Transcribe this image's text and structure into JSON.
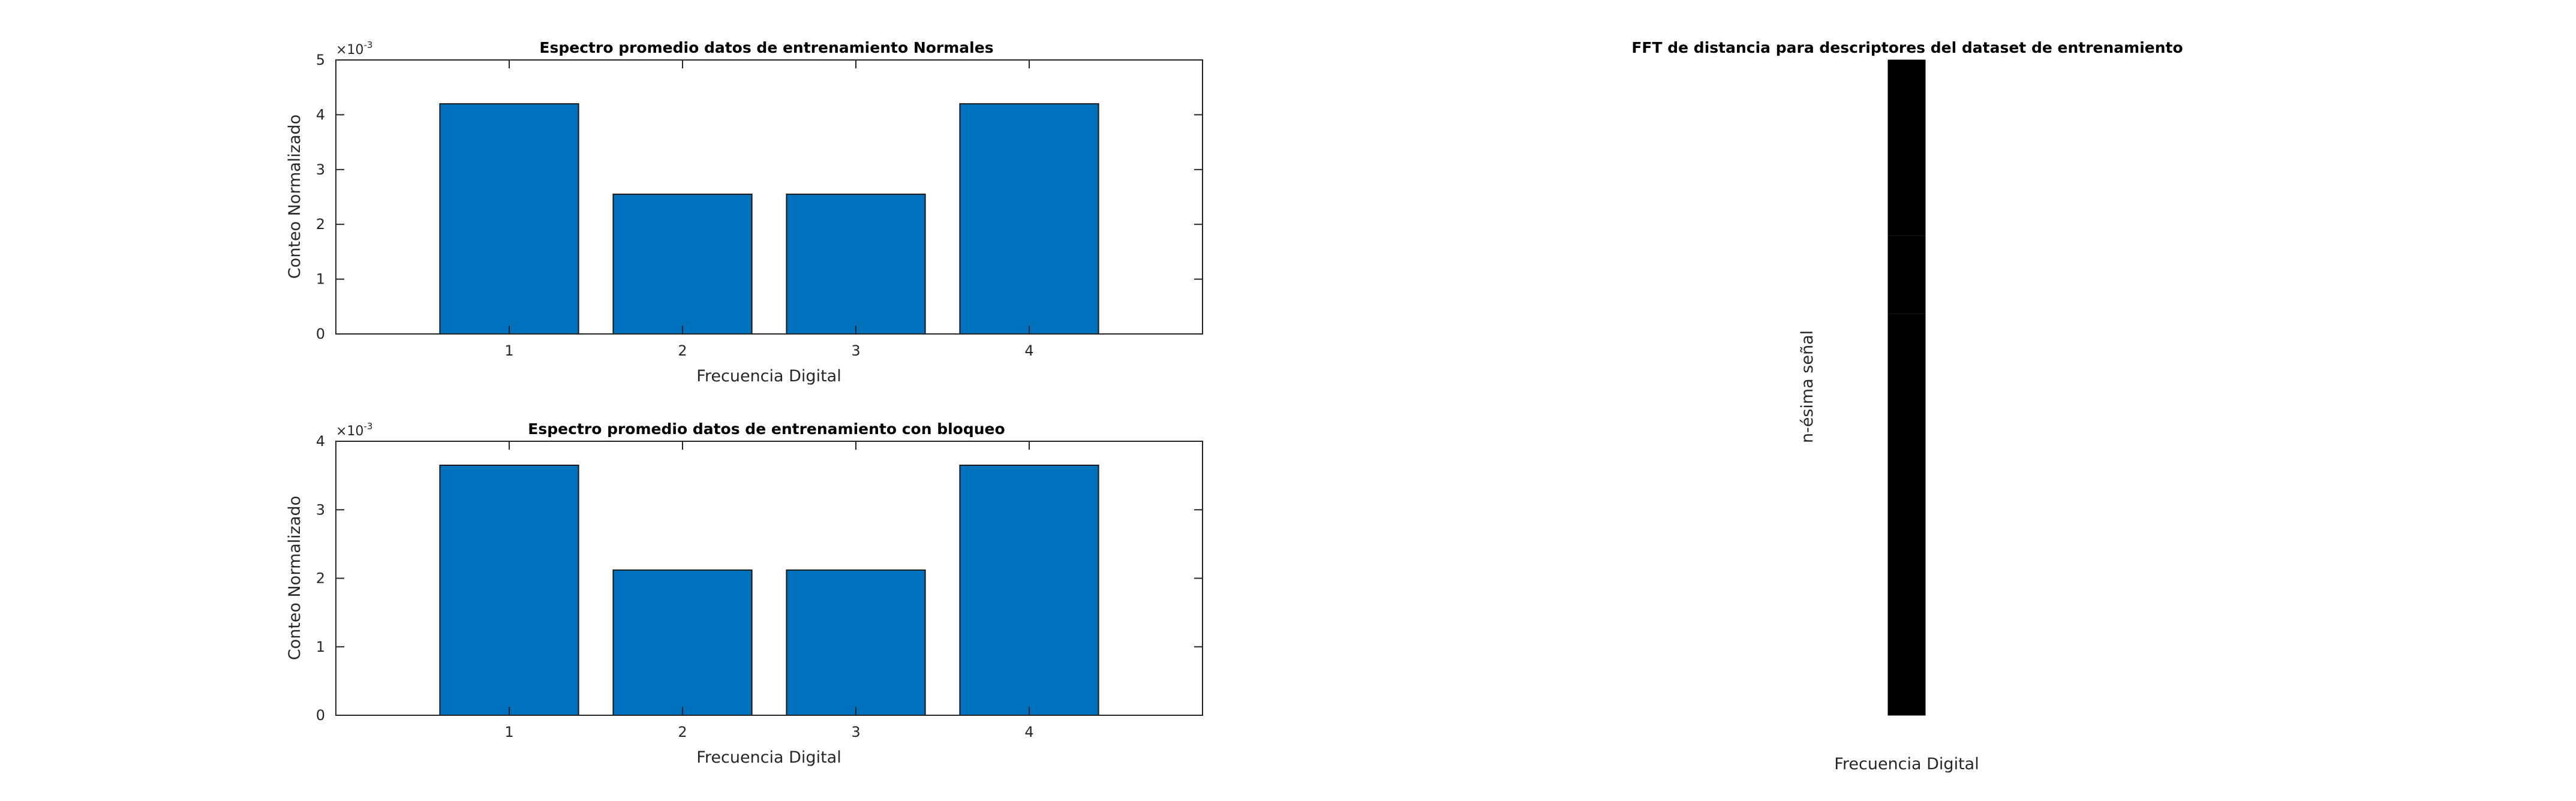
{
  "chart_data": [
    {
      "type": "bar",
      "title": "Espectro promedio datos de entrenamiento Normales",
      "xlabel": "Frecuencia Digital",
      "ylabel": "Conteo Normalizado",
      "categories": [
        "1",
        "2",
        "3",
        "4"
      ],
      "values": [
        0.0042,
        0.00255,
        0.00255,
        0.0042
      ],
      "xlim": [
        0,
        5
      ],
      "ylim": [
        0,
        0.005
      ],
      "yticks": [
        0,
        1,
        2,
        3,
        4,
        5
      ],
      "ytick_labels": [
        "0",
        "1",
        "2",
        "3",
        "4",
        "5"
      ],
      "y_exponent": {
        "base": "×10",
        "power": "-3"
      },
      "bar_color": "#0072BD",
      "grid": false
    },
    {
      "type": "bar",
      "title": "Espectro promedio datos de entrenamiento con bloqueo",
      "xlabel": "Frecuencia Digital",
      "ylabel": "Conteo Normalizado",
      "categories": [
        "1",
        "2",
        "3",
        "4"
      ],
      "values": [
        0.00365,
        0.00212,
        0.00212,
        0.00365
      ],
      "xlim": [
        0,
        5
      ],
      "ylim": [
        0,
        0.004
      ],
      "yticks": [
        0,
        1,
        2,
        3,
        4
      ],
      "ytick_labels": [
        "0",
        "1",
        "2",
        "3",
        "4"
      ],
      "y_exponent": {
        "base": "×10",
        "power": "-3"
      },
      "bar_color": "#0072BD",
      "grid": false
    },
    {
      "type": "heatmap",
      "title": "FFT de distancia para descriptores del dataset de entrenamiento",
      "xlabel": "Frecuencia Digital",
      "ylabel": "n-ésima señal",
      "cell_color": "#000000"
    }
  ]
}
